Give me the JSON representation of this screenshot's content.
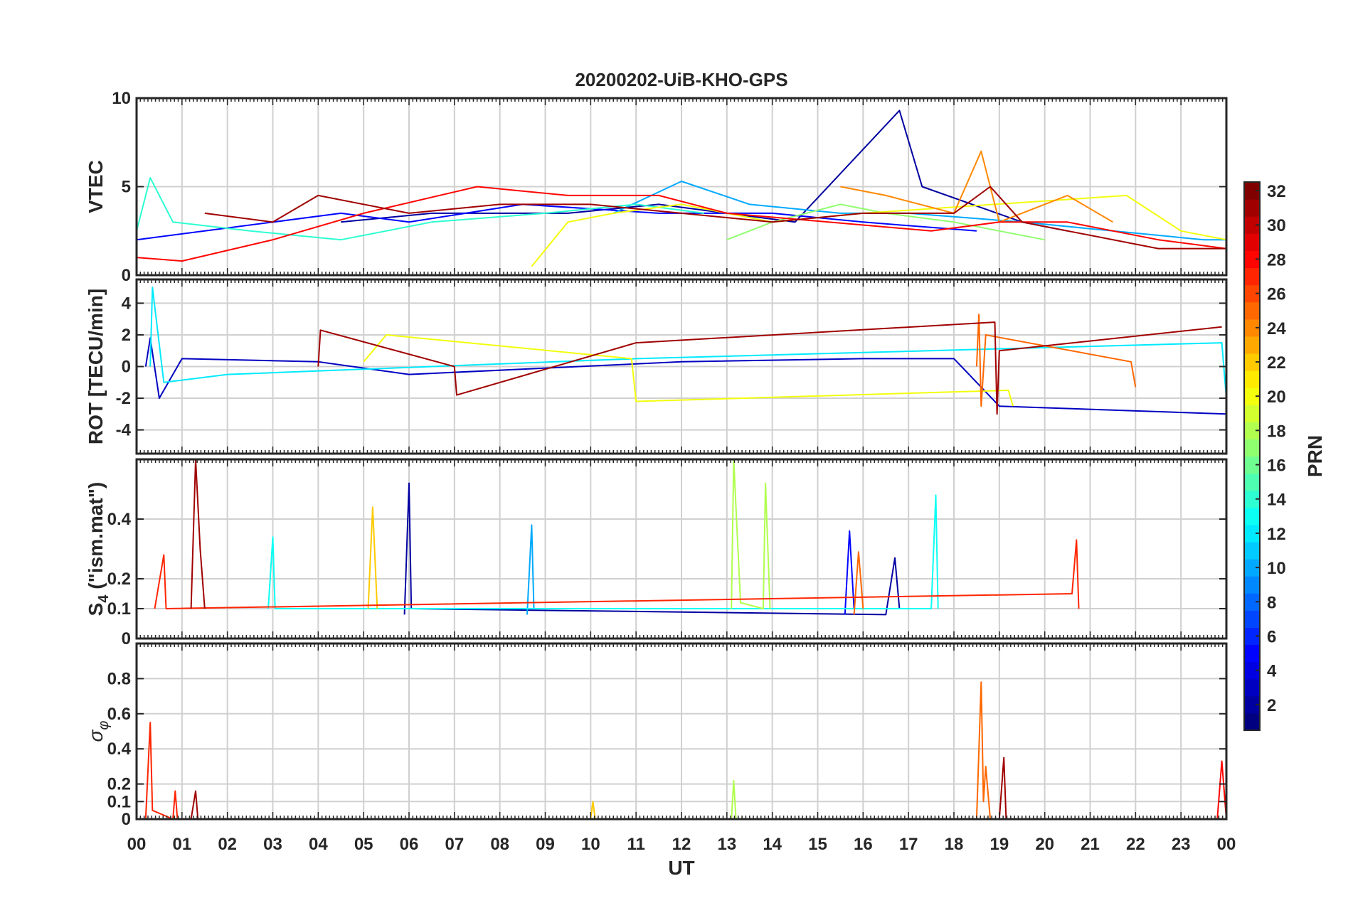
{
  "figure": {
    "title": "20200202-UiB-KHO-GPS",
    "xlabel": "UT",
    "x_tick_labels": [
      "00",
      "01",
      "02",
      "03",
      "04",
      "05",
      "06",
      "07",
      "08",
      "09",
      "10",
      "11",
      "12",
      "13",
      "14",
      "15",
      "16",
      "17",
      "18",
      "19",
      "20",
      "21",
      "22",
      "23",
      "00"
    ],
    "colorbar": {
      "label": "PRN",
      "colormap": "jet",
      "range": [
        1,
        32
      ],
      "tick_labels": [
        "2",
        "4",
        "6",
        "8",
        "10",
        "12",
        "14",
        "16",
        "18",
        "20",
        "22",
        "24",
        "26",
        "28",
        "30",
        "32"
      ]
    }
  },
  "panels": [
    {
      "id": "vtec",
      "ylabel": "VTEC",
      "ylim": [
        0,
        10
      ],
      "y_ticks": [
        0,
        5,
        10
      ],
      "y_tick_labels": [
        "0",
        "5",
        "10"
      ]
    },
    {
      "id": "rot",
      "ylabel": "ROT [TECU/min]",
      "ylim": [
        -5.5,
        5.5
      ],
      "y_ticks": [
        -4,
        -2,
        0,
        2,
        4
      ],
      "y_tick_labels": [
        "-4",
        "-2",
        "0",
        "2",
        "4"
      ]
    },
    {
      "id": "s4",
      "ylabel": "S",
      "ylabel_sub": "4",
      "ylabel_suffix": " (\"ism.mat\")",
      "ylim": [
        0,
        0.6
      ],
      "y_ticks": [
        0,
        0.1,
        0.2,
        0.4
      ],
      "y_tick_labels": [
        "0",
        "0.1",
        "0.2",
        "0.4"
      ]
    },
    {
      "id": "sigphi",
      "ylabel": "σ",
      "ylabel_sub": "φ",
      "ylim": [
        0,
        1
      ],
      "y_ticks": [
        0,
        0.1,
        0.2,
        0.4,
        0.6,
        0.8
      ],
      "y_tick_labels": [
        "0",
        "0.1",
        "0.2",
        "0.4",
        "0.6",
        "0.8"
      ]
    }
  ],
  "chart_data": [
    {
      "type": "line",
      "panel": "vtec",
      "title": "20200202-UiB-KHO-GPS",
      "ylabel": "VTEC",
      "xlim": [
        0,
        24
      ],
      "ylim": [
        0,
        10
      ],
      "grid": true,
      "color_by": "PRN",
      "series": [
        {
          "prn": 2,
          "x": [
            4.5,
            6.5,
            9.5,
            11.5,
            14.5,
            16.8,
            17.3,
            19.5,
            20.5
          ],
          "y": [
            3.0,
            3.5,
            3.5,
            4.0,
            3.0,
            9.3,
            5.0,
            3.0,
            2.5
          ]
        },
        {
          "prn": 5,
          "x": [
            0.0,
            1.5,
            4.5,
            6.0,
            8.5,
            11.5,
            14.0,
            16.0,
            18.5
          ],
          "y": [
            2.0,
            2.5,
            3.5,
            3.0,
            4.0,
            3.5,
            3.5,
            3.0,
            2.5
          ]
        },
        {
          "prn": 10,
          "x": [
            10.5,
            12.0,
            13.5,
            15.5,
            17.0,
            19.5,
            21.5,
            23.5,
            24.0
          ],
          "y": [
            3.5,
            5.3,
            4.0,
            3.5,
            3.5,
            3.0,
            2.5,
            2.0,
            2.0
          ]
        },
        {
          "prn": 14,
          "x": [
            0.0,
            0.3,
            0.8,
            2.5,
            4.5,
            6.5,
            9.0,
            11.0,
            12.5
          ],
          "y": [
            2.5,
            5.5,
            3.0,
            2.5,
            2.0,
            3.0,
            3.5,
            4.0,
            3.5
          ]
        },
        {
          "prn": 17,
          "x": [
            13.0,
            14.0,
            15.5,
            16.5,
            18.0,
            19.0,
            20.0
          ],
          "y": [
            2.0,
            3.0,
            4.0,
            3.5,
            3.0,
            2.5,
            2.0
          ]
        },
        {
          "prn": 20,
          "x": [
            8.7,
            9.5,
            10.5,
            12.0,
            14.0,
            16.0,
            21.8,
            23.0,
            24.0
          ],
          "y": [
            0.5,
            3.0,
            3.5,
            4.0,
            3.0,
            3.5,
            4.5,
            2.5,
            2.0
          ]
        },
        {
          "prn": 24,
          "x": [
            15.5,
            16.5,
            18.0,
            18.6,
            19.0,
            20.5,
            21.5
          ],
          "y": [
            5.0,
            4.5,
            3.5,
            7.0,
            3.0,
            4.5,
            3.0
          ]
        },
        {
          "prn": 28,
          "x": [
            0.0,
            1.0,
            3.0,
            5.0,
            7.5,
            9.5,
            11.5,
            13.0,
            17.5,
            19.0,
            20.5,
            22.5,
            24.0
          ],
          "y": [
            1.0,
            0.8,
            2.0,
            3.5,
            5.0,
            4.5,
            4.5,
            3.5,
            2.5,
            3.0,
            3.0,
            2.0,
            1.5
          ]
        },
        {
          "prn": 31,
          "x": [
            1.5,
            3.0,
            4.0,
            6.0,
            8.0,
            10.0,
            12.0,
            14.0,
            16.0,
            18.0,
            18.8,
            19.5,
            22.5,
            24.0
          ],
          "y": [
            3.5,
            3.0,
            4.5,
            3.5,
            4.0,
            4.0,
            3.5,
            3.0,
            3.5,
            3.5,
            5.0,
            3.0,
            1.5,
            1.5
          ]
        }
      ]
    },
    {
      "type": "line",
      "panel": "rot",
      "ylabel": "ROT [TECU/min]",
      "xlim": [
        0,
        24
      ],
      "ylim": [
        -5.5,
        5.5
      ],
      "grid": true,
      "color_by": "PRN",
      "series": [
        {
          "prn": 3,
          "x": [
            0.2,
            0.3,
            0.5,
            1.0,
            4.0,
            6.0,
            12.0,
            16.0,
            18.0,
            19.0,
            24.0
          ],
          "y": [
            0.0,
            1.8,
            -2.0,
            0.5,
            0.3,
            -0.5,
            0.3,
            0.5,
            0.5,
            -2.5,
            -3.0
          ]
        },
        {
          "prn": 12,
          "x": [
            0.3,
            0.35,
            0.6,
            2.0,
            11.0,
            23.9,
            24.0
          ],
          "y": [
            0.0,
            5.0,
            -1.0,
            -0.5,
            0.5,
            1.5,
            -2.0
          ]
        },
        {
          "prn": 20,
          "x": [
            5.0,
            5.5,
            10.9,
            11.0,
            19.2,
            19.3
          ],
          "y": [
            0.3,
            2.0,
            0.5,
            -2.2,
            -1.5,
            -2.5
          ]
        },
        {
          "prn": 25,
          "x": [
            18.5,
            18.55,
            18.6,
            18.7,
            21.9,
            22.0
          ],
          "y": [
            0.0,
            3.3,
            -2.5,
            2.0,
            0.3,
            -1.3
          ]
        },
        {
          "prn": 31,
          "x": [
            4.0,
            4.05,
            7.0,
            7.05,
            11.0,
            18.9,
            18.95,
            19.0,
            23.9
          ],
          "y": [
            0.0,
            2.3,
            0.0,
            -1.8,
            1.5,
            2.8,
            -3.0,
            1.0,
            2.5
          ]
        }
      ]
    },
    {
      "type": "line",
      "panel": "s4",
      "ylabel": "S4 (\"ism.mat\")",
      "xlim": [
        0,
        24
      ],
      "ylim": [
        0,
        0.6
      ],
      "grid": true,
      "color_by": "PRN",
      "series": [
        {
          "prn": 2,
          "x": [
            5.9,
            6.0,
            6.05,
            16.5,
            16.7,
            16.8
          ],
          "y": [
            0.08,
            0.52,
            0.1,
            0.08,
            0.27,
            0.1
          ]
        },
        {
          "prn": 5,
          "x": [
            15.6,
            15.7,
            15.8
          ],
          "y": [
            0.08,
            0.36,
            0.1
          ]
        },
        {
          "prn": 10,
          "x": [
            8.6,
            8.7,
            8.75
          ],
          "y": [
            0.08,
            0.38,
            0.1
          ]
        },
        {
          "prn": 13,
          "x": [
            2.9,
            3.0,
            3.05,
            17.5,
            17.6,
            17.65
          ],
          "y": [
            0.1,
            0.34,
            0.1,
            0.1,
            0.48,
            0.1
          ]
        },
        {
          "prn": 18,
          "x": [
            13.1,
            13.15,
            13.3,
            13.8,
            13.85,
            13.95
          ],
          "y": [
            0.1,
            0.6,
            0.12,
            0.1,
            0.52,
            0.1
          ]
        },
        {
          "prn": 22,
          "x": [
            5.1,
            5.2,
            5.3
          ],
          "y": [
            0.1,
            0.44,
            0.1
          ]
        },
        {
          "prn": 25,
          "x": [
            15.8,
            15.9,
            16.0
          ],
          "y": [
            0.08,
            0.29,
            0.1
          ]
        },
        {
          "prn": 27,
          "x": [
            0.4,
            0.6,
            0.65,
            20.6,
            20.7,
            20.75
          ],
          "y": [
            0.1,
            0.28,
            0.1,
            0.15,
            0.33,
            0.1
          ]
        },
        {
          "prn": 31,
          "x": [
            1.2,
            1.3,
            1.4,
            1.5
          ],
          "y": [
            0.1,
            0.6,
            0.3,
            0.1
          ]
        }
      ]
    },
    {
      "type": "line",
      "panel": "sigphi",
      "ylabel": "σφ",
      "xlim": [
        0,
        24
      ],
      "ylim": [
        0,
        1
      ],
      "grid": true,
      "color_by": "PRN",
      "series": [
        {
          "prn": 18,
          "x": [
            13.1,
            13.15,
            13.2
          ],
          "y": [
            0.0,
            0.22,
            0.0
          ]
        },
        {
          "prn": 22,
          "x": [
            10.0,
            10.05,
            10.1
          ],
          "y": [
            0.0,
            0.1,
            0.0
          ]
        },
        {
          "prn": 25,
          "x": [
            18.5,
            18.6,
            18.65,
            18.7,
            18.8
          ],
          "y": [
            0.0,
            0.78,
            0.1,
            0.3,
            0.0
          ]
        },
        {
          "prn": 27,
          "x": [
            0.2,
            0.3,
            0.35,
            0.8,
            0.85,
            0.9
          ],
          "y": [
            0.0,
            0.55,
            0.05,
            0.0,
            0.16,
            0.0
          ]
        },
        {
          "prn": 28,
          "x": [
            23.8,
            23.9,
            24.0
          ],
          "y": [
            0.0,
            0.33,
            0.0
          ]
        },
        {
          "prn": 31,
          "x": [
            1.2,
            1.3,
            1.35,
            19.0,
            19.1,
            19.15
          ],
          "y": [
            0.0,
            0.16,
            0.0,
            0.0,
            0.35,
            0.0
          ]
        }
      ]
    }
  ]
}
